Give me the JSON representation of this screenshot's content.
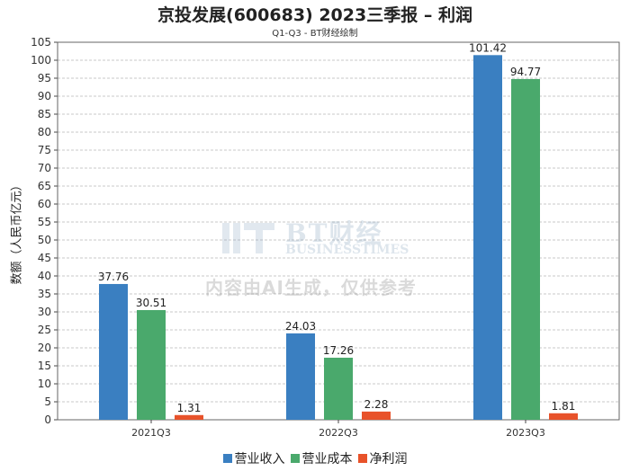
{
  "chart_data": {
    "type": "bar",
    "title": "京投发展(600683) 2023三季报 – 利润",
    "subtitle": "Q1-Q3 - BT财经绘制",
    "ylabel": "数额（人民币亿元）",
    "xlabel": "",
    "ylim": [
      0,
      105
    ],
    "ytick_step": 5,
    "grid": true,
    "legend_position": "bottom",
    "categories": [
      "2021Q3",
      "2022Q3",
      "2023Q3"
    ],
    "series": [
      {
        "name": "营业收入",
        "color": "#3a7fc1",
        "values": [
          37.76,
          24.03,
          101.42
        ],
        "labels": [
          "37.76",
          "24.03",
          "101.42"
        ]
      },
      {
        "name": "营业成本",
        "color": "#4aa96c",
        "values": [
          30.51,
          17.26,
          94.77
        ],
        "labels": [
          "30.51",
          "17.26",
          "94.77"
        ]
      },
      {
        "name": "净利润",
        "color": "#e8522a",
        "values": [
          1.31,
          2.28,
          1.81
        ],
        "labels": [
          "1.31",
          "2.28",
          "1.81"
        ]
      }
    ]
  },
  "watermark": {
    "brand": "BT财经",
    "brand_sub": "BUSINESSTIMES",
    "notice": "内容由AI生成，仅供参考"
  }
}
